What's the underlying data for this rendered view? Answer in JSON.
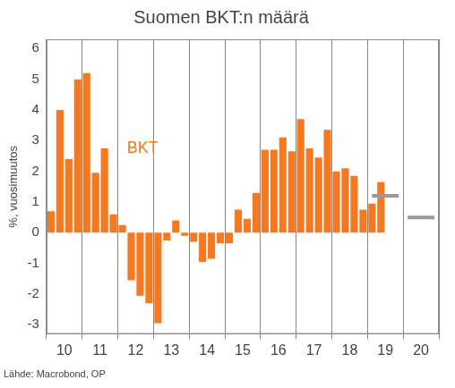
{
  "chart_data": {
    "type": "bar",
    "title": "Suomen BKT:n määrä",
    "y_label": "%, vuosimuutos",
    "source": "Lähde: Macrobond, OP",
    "annotations": [
      {
        "text": "BKT"
      }
    ],
    "categories": [
      "10",
      null,
      null,
      null,
      "11",
      null,
      null,
      null,
      "12",
      null,
      null,
      null,
      "13",
      null,
      null,
      null,
      "14",
      null,
      null,
      null,
      "15",
      null,
      null,
      null,
      "16",
      null,
      null,
      null,
      "17",
      null,
      null,
      null,
      "18",
      null,
      null,
      null,
      "19",
      null,
      null,
      null,
      "20",
      null,
      null,
      null
    ],
    "series": [
      {
        "name": "BKT",
        "color": "#f47920",
        "type": "bar",
        "values": [
          0.7,
          4.0,
          2.4,
          5.0,
          5.2,
          1.95,
          2.75,
          0.6,
          0.25,
          -1.55,
          -2.05,
          -2.3,
          -2.95,
          -0.25,
          0.4,
          -0.1,
          -0.3,
          -0.95,
          -0.85,
          -0.35,
          -0.35,
          0.75,
          0.45,
          1.3,
          2.7,
          2.7,
          3.1,
          2.65,
          3.7,
          2.75,
          2.45,
          3.35,
          2.0,
          2.1,
          1.85,
          0.75,
          0.95,
          1.65,
          null,
          null,
          null,
          null,
          null,
          null
        ]
      },
      {
        "color": "#999999",
        "type": "line",
        "values": [
          null,
          null,
          null,
          null,
          null,
          null,
          null,
          null,
          null,
          null,
          null,
          null,
          null,
          null,
          null,
          null,
          null,
          null,
          null,
          null,
          null,
          null,
          null,
          null,
          null,
          null,
          null,
          null,
          null,
          null,
          null,
          null,
          null,
          null,
          null,
          null,
          1.2,
          1.2,
          1.2,
          1.2,
          0.5,
          0.5,
          0.5,
          0.5
        ]
      }
    ],
    "ylim": [
      -3.3,
      6.3
    ],
    "yticks": [
      -3,
      -2,
      -1,
      0,
      1,
      2,
      3,
      4,
      5,
      6
    ],
    "grid": true
  }
}
